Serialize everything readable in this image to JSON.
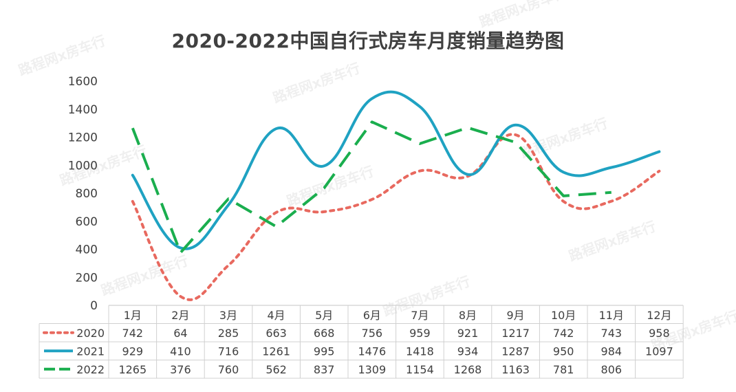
{
  "chart_data": {
    "type": "line",
    "title": "2020-2022中国自行式房车月度销量趋势图",
    "categories": [
      "1月",
      "2月",
      "3月",
      "4月",
      "5月",
      "6月",
      "7月",
      "8月",
      "9月",
      "10月",
      "11月",
      "12月"
    ],
    "ylim": [
      0,
      1600
    ],
    "yticks": [
      0,
      200,
      400,
      600,
      800,
      1000,
      1200,
      1400,
      1600
    ],
    "grid": false,
    "legend": "data-table",
    "series": [
      {
        "name": "2020",
        "color": "#E8695F",
        "dash": "dotted",
        "smooth": true,
        "values": [
          742,
          64,
          285,
          663,
          668,
          756,
          959,
          921,
          1217,
          742,
          743,
          958
        ]
      },
      {
        "name": "2021",
        "color": "#1FA2C2",
        "dash": "solid",
        "smooth": true,
        "values": [
          929,
          410,
          716,
          1261,
          995,
          1476,
          1418,
          934,
          1287,
          950,
          984,
          1097
        ]
      },
      {
        "name": "2022",
        "color": "#1AAE4E",
        "dash": "dashed",
        "smooth": false,
        "values": [
          1265,
          376,
          760,
          562,
          837,
          1309,
          1154,
          1268,
          1163,
          781,
          806,
          null
        ]
      }
    ]
  },
  "watermark": "路程网x房车行"
}
